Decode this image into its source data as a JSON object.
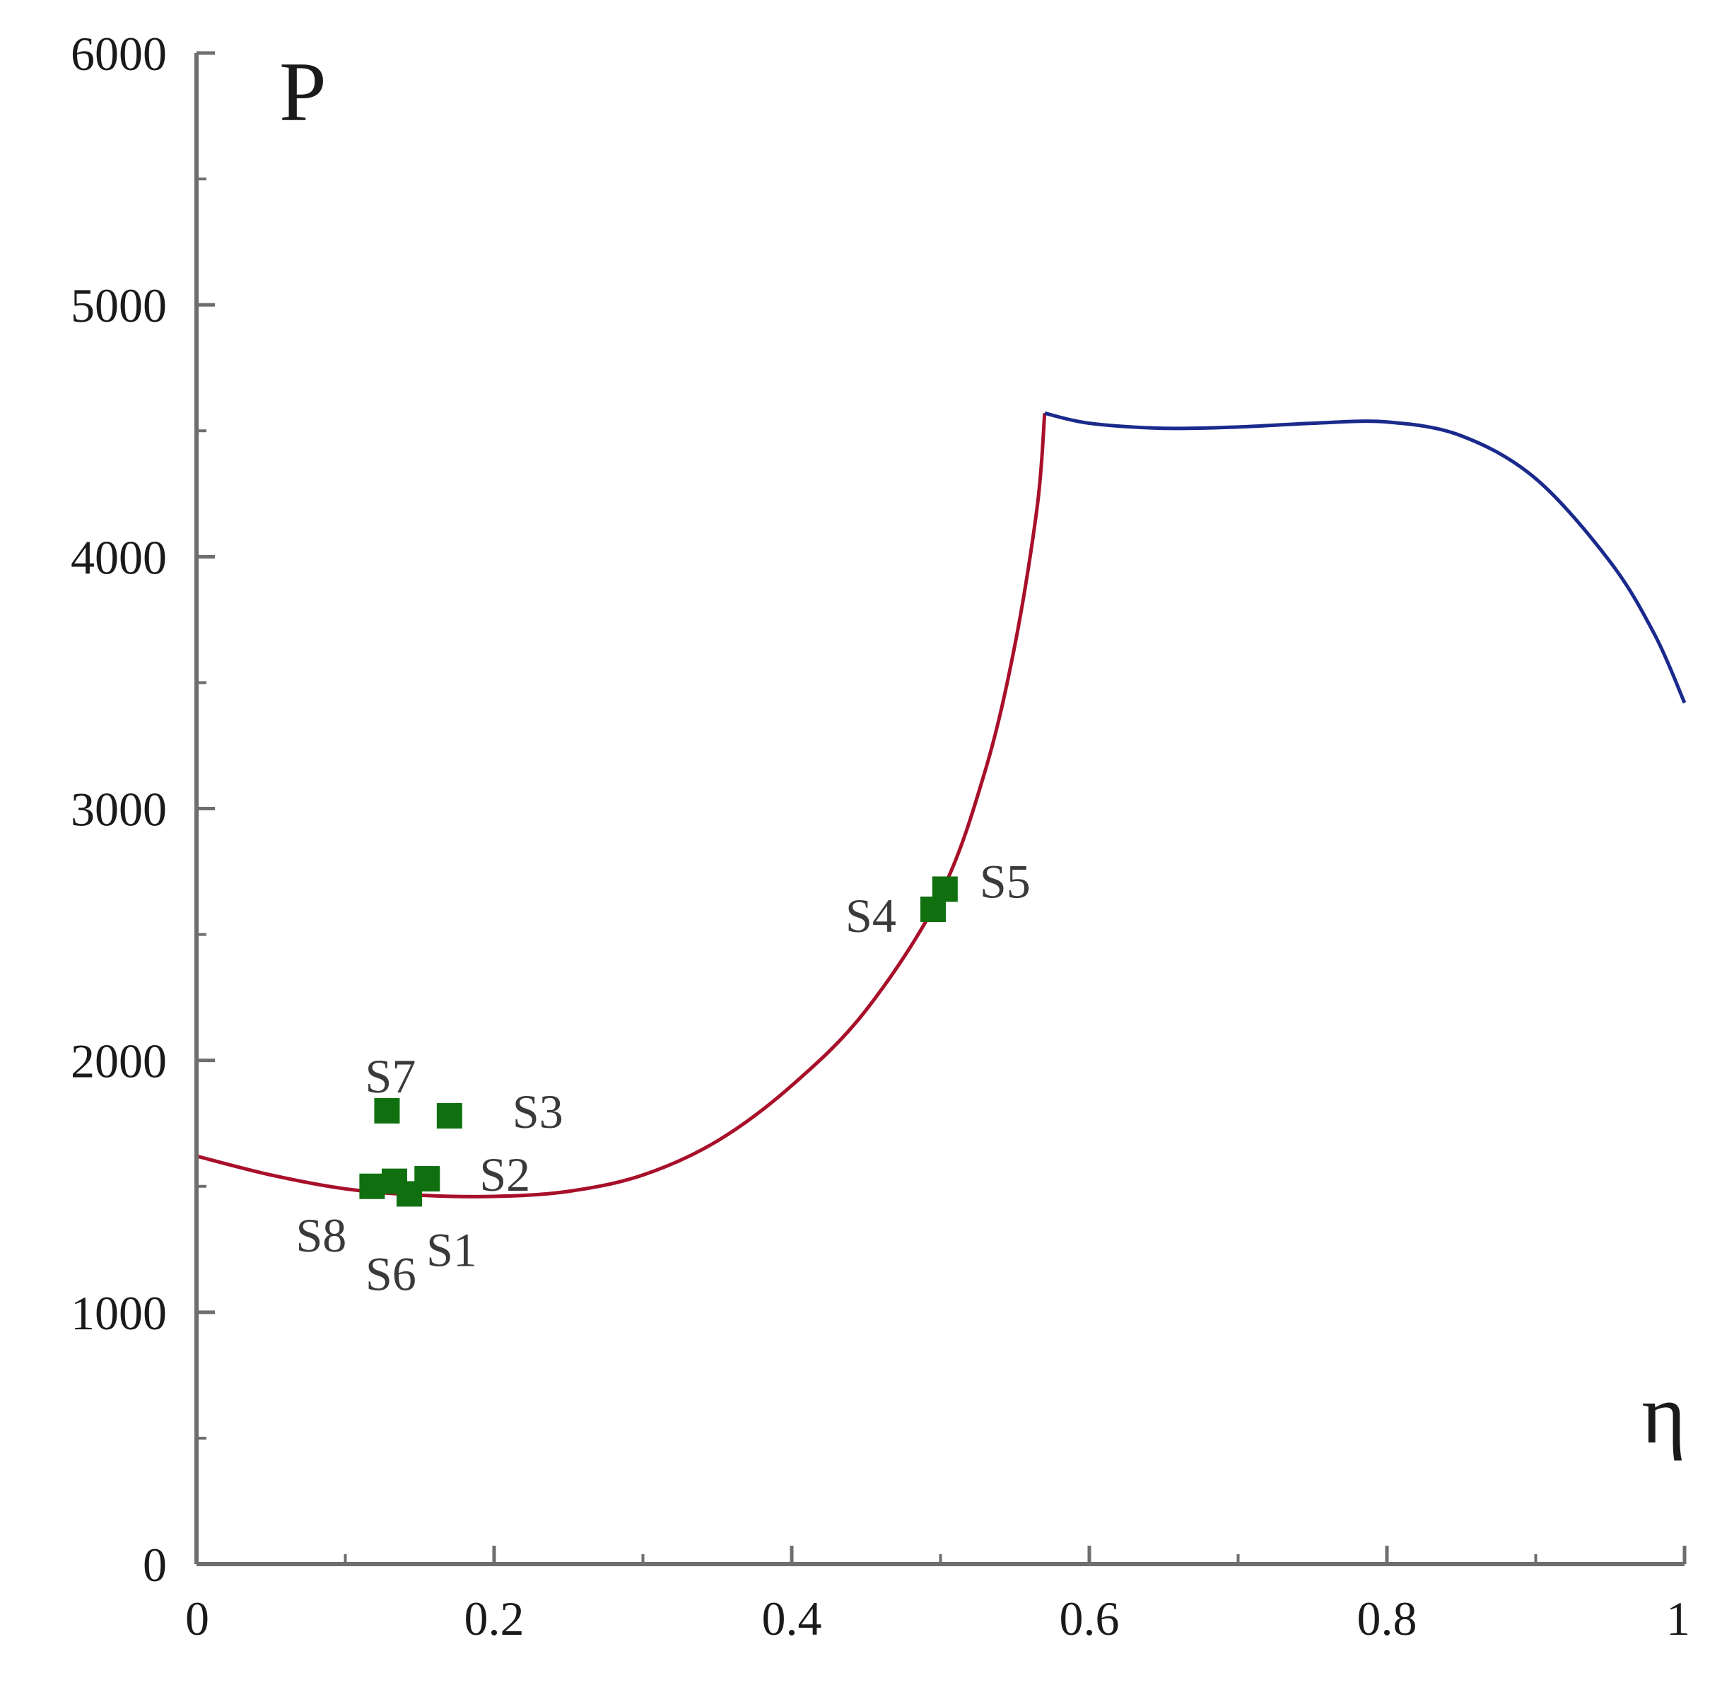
{
  "chart_data": {
    "type": "line",
    "title": "",
    "xlabel": "η",
    "ylabel": "P",
    "xlim": [
      0,
      1
    ],
    "ylim": [
      0,
      6000
    ],
    "grid": false,
    "x_ticks": [
      0,
      0.2,
      0.4,
      0.6,
      0.8,
      1
    ],
    "x_tick_labels": [
      "0",
      "0.2",
      "0.4",
      "0.6",
      "0.8",
      "1"
    ],
    "x_minor_step": 0.1,
    "y_ticks": [
      0,
      1000,
      2000,
      3000,
      4000,
      5000,
      6000
    ],
    "y_tick_labels": [
      "0",
      "1000",
      "2000",
      "3000",
      "4000",
      "5000",
      "6000"
    ],
    "y_minor_step": 500,
    "series": [
      {
        "color": "#a8102a",
        "x": [
          0,
          0.05,
          0.1,
          0.15,
          0.2,
          0.25,
          0.3,
          0.35,
          0.4,
          0.45,
          0.5,
          0.53,
          0.55,
          0.565,
          0.57
        ],
        "y": [
          1620,
          1545,
          1490,
          1465,
          1460,
          1480,
          1545,
          1680,
          1900,
          2200,
          2660,
          3150,
          3650,
          4200,
          4570
        ]
      },
      {
        "color": "#1a2a8c",
        "x": [
          0.57,
          0.6,
          0.65,
          0.7,
          0.75,
          0.8,
          0.85,
          0.9,
          0.95,
          0.98,
          1.0
        ],
        "y": [
          4570,
          4530,
          4510,
          4515,
          4530,
          4535,
          4480,
          4310,
          3980,
          3690,
          3420
        ]
      }
    ],
    "points": {
      "color": "#107010",
      "items": [
        {
          "label": "S1",
          "x": 0.143,
          "y": 1470
        },
        {
          "label": "S2",
          "x": 0.155,
          "y": 1530
        },
        {
          "label": "S3",
          "x": 0.17,
          "y": 1780
        },
        {
          "label": "S4",
          "x": 0.495,
          "y": 2600
        },
        {
          "label": "S5",
          "x": 0.503,
          "y": 2680
        },
        {
          "label": "S6",
          "x": 0.133,
          "y": 1520
        },
        {
          "label": "S7",
          "x": 0.128,
          "y": 1800
        },
        {
          "label": "S8",
          "x": 0.118,
          "y": 1500
        }
      ]
    }
  }
}
